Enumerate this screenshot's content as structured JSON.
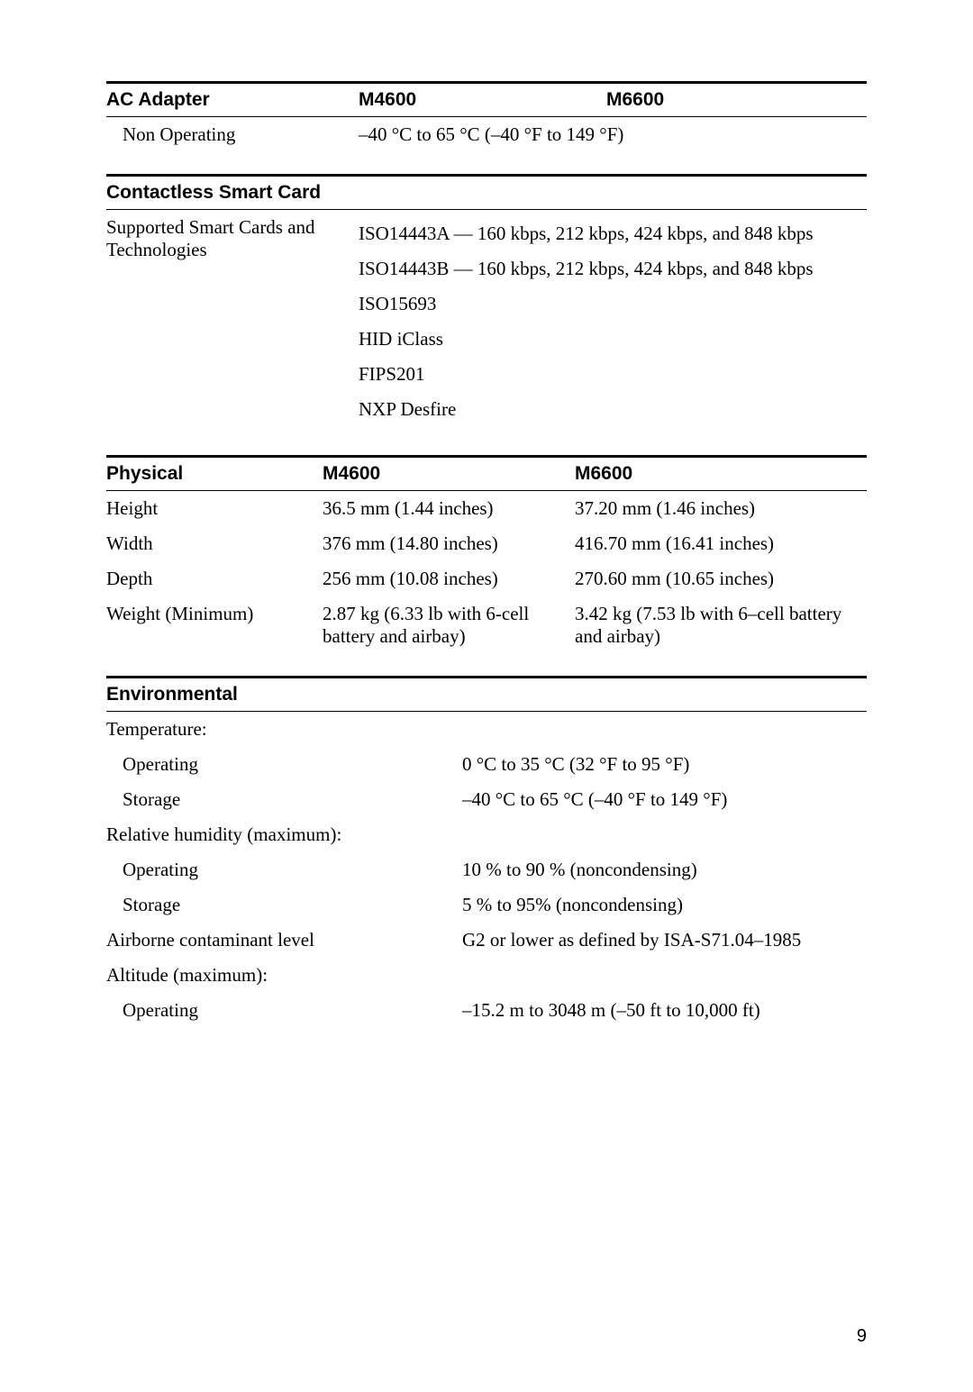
{
  "ac_adapter": {
    "header_label": "AC Adapter",
    "header_m4600": "M4600",
    "header_m6600": "M6600",
    "non_operating_label": "Non Operating",
    "non_operating_value": "–40 °C to 65 °C (–40 °F to 149 °F)"
  },
  "smartcard": {
    "header": "Contactless Smart Card",
    "supported_label": "Supported Smart Cards and Technologies",
    "items": [
      "ISO14443A — 160 kbps, 212 kbps, 424 kbps, and 848 kbps",
      "ISO14443B — 160 kbps, 212 kbps, 424 kbps, and 848 kbps",
      "ISO15693",
      "HID iClass",
      "FIPS201",
      "NXP Desfire"
    ]
  },
  "physical": {
    "header_label": "Physical",
    "header_m4600": "M4600",
    "header_m6600": "M6600",
    "rows": [
      {
        "label": "Height",
        "m4600": "36.5 mm (1.44 inches)",
        "m6600": "37.20 mm (1.46 inches)"
      },
      {
        "label": "Width",
        "m4600": "376 mm (14.80 inches)",
        "m6600": "416.70 mm (16.41 inches)"
      },
      {
        "label": "Depth",
        "m4600": "256 mm (10.08 inches)",
        "m6600": "270.60 mm (10.65 inches)"
      },
      {
        "label": "Weight (Minimum)",
        "m4600": "2.87 kg (6.33 lb with 6-cell battery and airbay)",
        "m6600": "3.42 kg (7.53 lb with 6–cell battery and airbay)"
      }
    ]
  },
  "environmental": {
    "header": "Environmental",
    "temperature_label": "Temperature:",
    "temp_operating_label": "Operating",
    "temp_operating_value": "0 °C to 35 °C (32 °F to 95 °F)",
    "temp_storage_label": "Storage",
    "temp_storage_value": "–40 °C to 65 °C (–40 °F to 149 °F)",
    "humidity_label": "Relative humidity (maximum):",
    "hum_operating_label": "Operating",
    "hum_operating_value": "10 % to 90 % (noncondensing)",
    "hum_storage_label": "Storage",
    "hum_storage_value": "5 % to 95% (noncondensing)",
    "airborne_label": "Airborne contaminant level",
    "airborne_value": "G2 or lower as defined by ISA-S71.04–1985",
    "altitude_label": "Altitude (maximum):",
    "alt_operating_label": "Operating",
    "alt_operating_value": "–15.2 m to 3048 m (–50 ft to 10,000 ft)"
  },
  "page_number": "9"
}
